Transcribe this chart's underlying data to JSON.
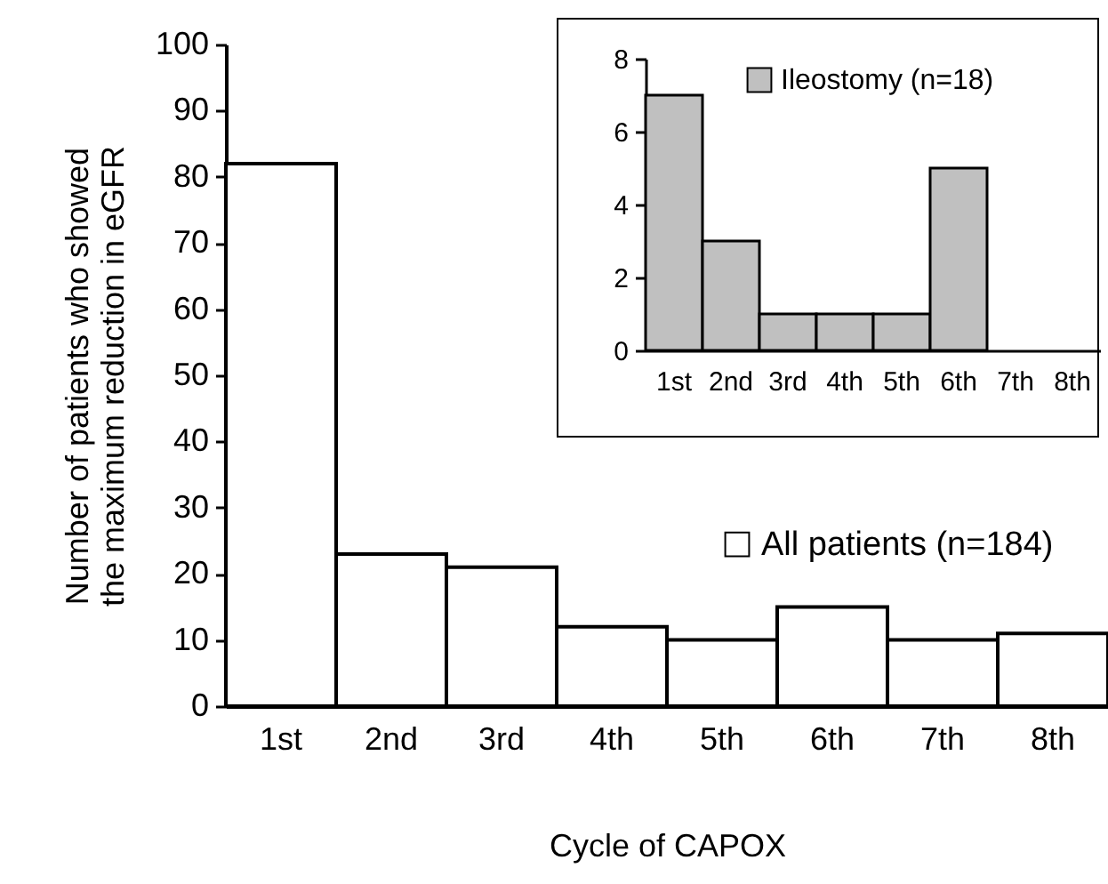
{
  "chart_data": [
    {
      "type": "bar",
      "xlabel": "Cycle of CAPOX",
      "ylabel": "Number of patients who showed\nthe maximum reduction in eGFR",
      "categories": [
        "1st",
        "2nd",
        "3rd",
        "4th",
        "5th",
        "6th",
        "7th",
        "8th"
      ],
      "series": [
        {
          "name": "All patients (n=184)",
          "color": "#ffffff",
          "values": [
            82,
            23,
            21,
            12,
            10,
            15,
            10,
            11
          ]
        }
      ],
      "ylim": [
        0,
        100
      ],
      "yticks": [
        0,
        10,
        20,
        30,
        40,
        50,
        60,
        70,
        80,
        90,
        100
      ],
      "grid": false,
      "legend": "right"
    },
    {
      "type": "bar",
      "categories": [
        "1st",
        "2nd",
        "3rd",
        "4th",
        "5th",
        "6th",
        "7th",
        "8th"
      ],
      "series": [
        {
          "name": "Ileostomy (n=18)",
          "color": "#c0c0c0",
          "values": [
            7,
            3,
            1,
            1,
            1,
            5,
            0,
            0
          ]
        }
      ],
      "ylim": [
        0,
        8
      ],
      "yticks": [
        0,
        2,
        4,
        6,
        8
      ],
      "grid": false,
      "legend": "top right"
    }
  ]
}
